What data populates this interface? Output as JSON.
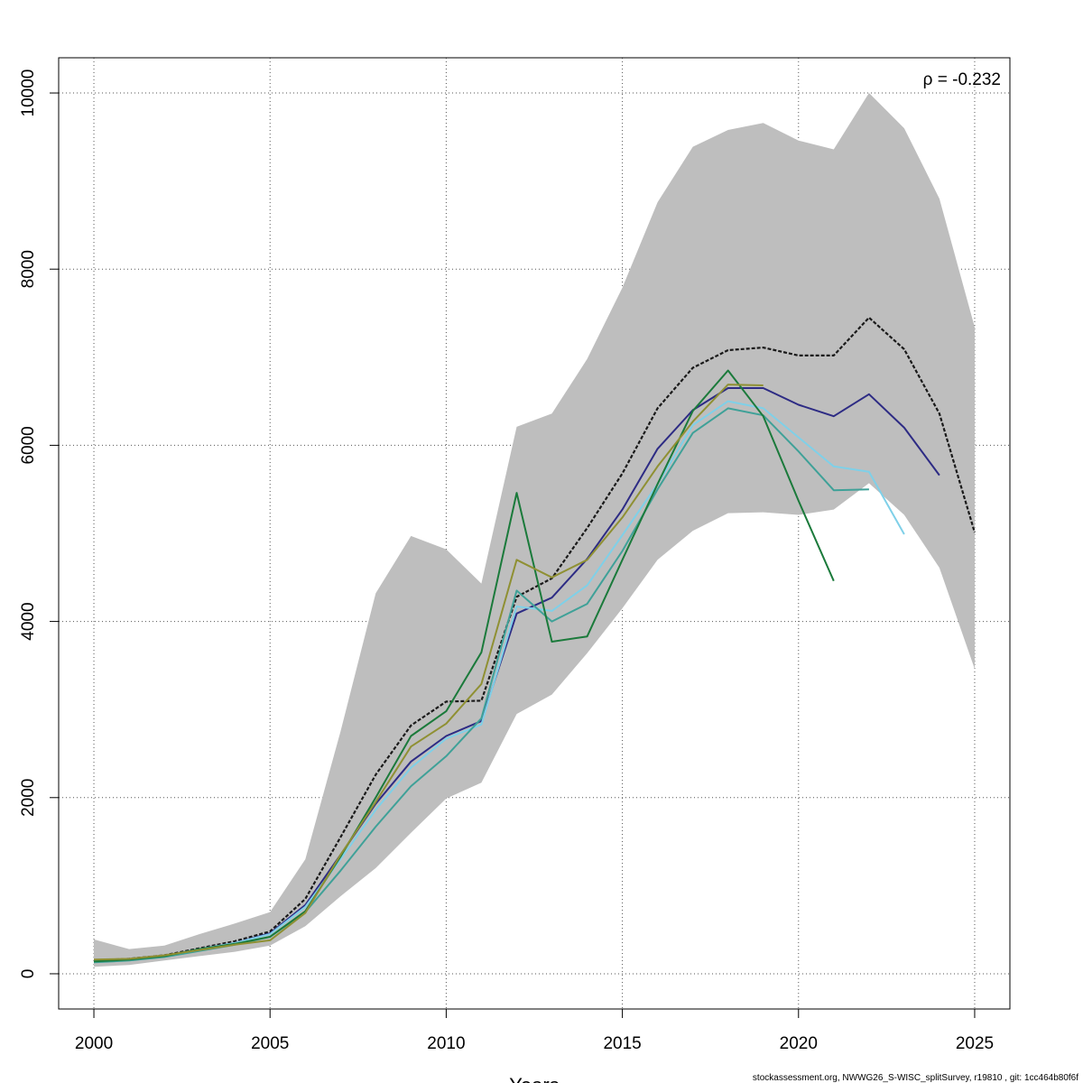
{
  "chart_data": {
    "type": "line",
    "xlabel": "Years",
    "ylabel": "",
    "xlim": [
      1999.0,
      2026.0
    ],
    "ylim": [
      -400,
      10400
    ],
    "x_ticks": [
      "2000",
      "2005",
      "2010",
      "2015",
      "2020",
      "2025"
    ],
    "y_ticks": [
      "0",
      "2000",
      "4000",
      "6000",
      "8000",
      "10000"
    ],
    "grid": true,
    "annotation": "ρ = -0.232",
    "footer": "stockassessment.org, NWWG26_S-WISC_splitSurvey, r19810 , git: 1cc464b80f6f",
    "confidence_band": {
      "color": "#bebebe",
      "x": [
        2000,
        2001,
        2002,
        2003,
        2004,
        2005,
        2006,
        2007,
        2008,
        2009,
        2010,
        2011,
        2012,
        2013,
        2014,
        2015,
        2016,
        2017,
        2018,
        2019,
        2020,
        2021,
        2022,
        2023,
        2024,
        2025
      ],
      "upper": [
        390,
        280,
        320,
        450,
        570,
        700,
        1300,
        2750,
        4320,
        4970,
        4820,
        4430,
        6210,
        6360,
        6980,
        7790,
        8760,
        9390,
        9580,
        9660,
        9460,
        9360,
        10000,
        9600,
        8800,
        7340
      ],
      "lower": [
        80,
        100,
        150,
        200,
        250,
        320,
        540,
        880,
        1200,
        1600,
        1990,
        2170,
        2950,
        3170,
        3640,
        4150,
        4700,
        5030,
        5230,
        5240,
        5210,
        5270,
        5570,
        5210,
        4610,
        3460
      ]
    },
    "series": [
      {
        "color": "#1a1a1a",
        "dashed": true,
        "x": [
          2000,
          2001,
          2002,
          2003,
          2004,
          2005,
          2006,
          2007,
          2008,
          2009,
          2010,
          2011,
          2012,
          2013,
          2014,
          2015,
          2016,
          2017,
          2018,
          2019,
          2020,
          2021,
          2022,
          2023,
          2024,
          2025
        ],
        "values": [
          150,
          170,
          210,
          290,
          370,
          480,
          850,
          1550,
          2260,
          2820,
          3090,
          3100,
          4280,
          4490,
          5060,
          5680,
          6420,
          6880,
          7080,
          7110,
          7020,
          7020,
          7450,
          7090,
          6360,
          5010
        ]
      },
      {
        "color": "#2d2b84",
        "dashed": false,
        "x": [
          2000,
          2001,
          2002,
          2003,
          2004,
          2005,
          2006,
          2007,
          2008,
          2009,
          2010,
          2011,
          2012,
          2013,
          2014,
          2015,
          2016,
          2017,
          2018,
          2019,
          2020,
          2021,
          2022,
          2023,
          2024
        ],
        "values": [
          140,
          160,
          200,
          280,
          350,
          460,
          780,
          1350,
          1930,
          2410,
          2700,
          2870,
          4090,
          4270,
          4710,
          5270,
          5960,
          6400,
          6650,
          6650,
          6460,
          6330,
          6580,
          6200,
          5660
        ]
      },
      {
        "color": "#7fd0e8",
        "dashed": false,
        "x": [
          2000,
          2001,
          2002,
          2003,
          2004,
          2005,
          2006,
          2007,
          2008,
          2009,
          2010,
          2011,
          2012,
          2013,
          2014,
          2015,
          2016,
          2017,
          2018,
          2019,
          2020,
          2021,
          2022,
          2023
        ],
        "values": [
          140,
          160,
          200,
          280,
          350,
          450,
          760,
          1300,
          1860,
          2340,
          2670,
          2830,
          4170,
          4120,
          4410,
          4980,
          5560,
          6230,
          6500,
          6420,
          6090,
          5760,
          5700,
          4990
        ]
      },
      {
        "color": "#3fa198",
        "dashed": false,
        "x": [
          2000,
          2001,
          2002,
          2003,
          2004,
          2005,
          2006,
          2007,
          2008,
          2009,
          2010,
          2011,
          2012,
          2013,
          2014,
          2015,
          2016,
          2017,
          2018,
          2019,
          2020,
          2021,
          2022
        ],
        "values": [
          130,
          150,
          190,
          260,
          330,
          420,
          700,
          1170,
          1670,
          2130,
          2470,
          2900,
          4350,
          4000,
          4200,
          4800,
          5500,
          6140,
          6420,
          6340,
          5930,
          5490,
          5500
        ]
      },
      {
        "color": "#1b7a3b",
        "dashed": false,
        "x": [
          2000,
          2001,
          2002,
          2003,
          2004,
          2005,
          2006,
          2007,
          2008,
          2009,
          2010,
          2011,
          2012,
          2013,
          2014,
          2015,
          2016,
          2017,
          2018,
          2019,
          2020,
          2021
        ],
        "values": [
          140,
          160,
          200,
          280,
          340,
          420,
          710,
          1330,
          2000,
          2700,
          2980,
          3650,
          5460,
          3770,
          3830,
          4700,
          5560,
          6390,
          6850,
          6330,
          5370,
          4460
        ]
      },
      {
        "color": "#8f9033",
        "dashed": false,
        "x": [
          2000,
          2001,
          2002,
          2003,
          2004,
          2005,
          2006,
          2007,
          2008,
          2009,
          2010,
          2011,
          2012,
          2013,
          2014,
          2015,
          2016,
          2017,
          2018,
          2019
        ],
        "values": [
          160,
          170,
          210,
          270,
          330,
          380,
          690,
          1350,
          1950,
          2580,
          2840,
          3290,
          4700,
          4500,
          4700,
          5180,
          5760,
          6270,
          6690,
          6680
        ]
      }
    ]
  }
}
